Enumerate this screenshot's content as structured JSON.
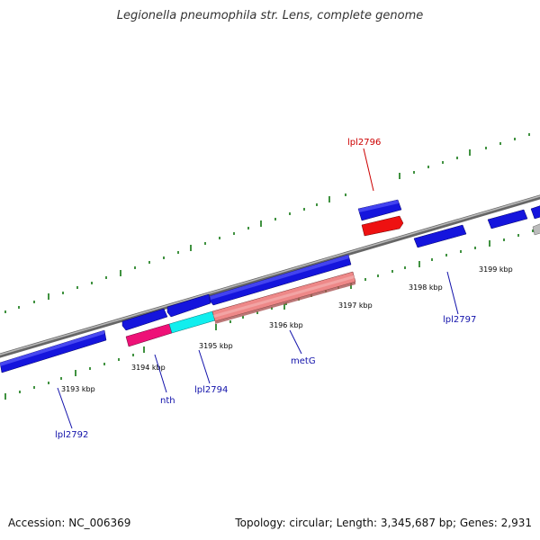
{
  "title": "Legionella pneumophila str. Lens, complete genome",
  "accession": "Accession: NC_006369",
  "stats": "Topology: circular; Length: 3,345,687 bp; Genes: 2,931",
  "colors": {
    "forward_gene": "#1111dd",
    "highlight_gene": "#ee1111",
    "nth": "#ee1177",
    "lpl2794": "#11eeee",
    "metG": "#ee8888",
    "backbone": "#888888",
    "ticks": "#117711",
    "label_blue": "#1111aa",
    "label_red": "#cc0000"
  },
  "ticks": [
    {
      "label": "3193 kbp"
    },
    {
      "label": "3194 kbp"
    },
    {
      "label": "3195 kbp"
    },
    {
      "label": "3196 kbp"
    },
    {
      "label": "3197 kbp"
    },
    {
      "label": "3198 kbp"
    },
    {
      "label": "3199 kbp"
    }
  ],
  "genes": [
    {
      "name": "lpl2792"
    },
    {
      "name": "nth"
    },
    {
      "name": "lpl2794"
    },
    {
      "name": "metG"
    },
    {
      "name": "lpl2796"
    },
    {
      "name": "lpl2797"
    }
  ]
}
